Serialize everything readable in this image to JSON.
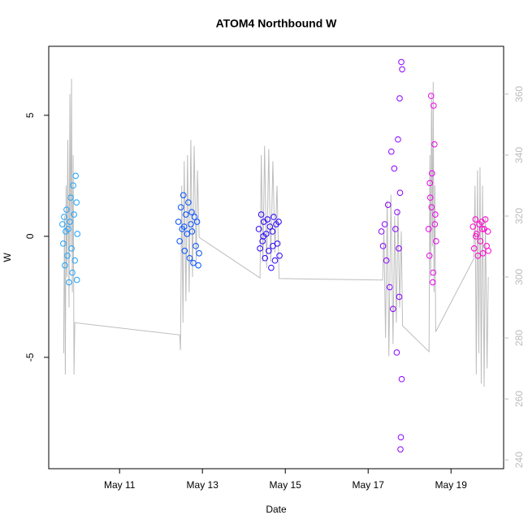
{
  "chart_data": {
    "type": "scatter",
    "title": "ATOM4 Northbound W",
    "x_label": "Date",
    "y_label": "W",
    "xlim": [
      9.29,
      20.27
    ],
    "xticks": [
      {
        "value": 11,
        "label": "May 11"
      },
      {
        "value": 13,
        "label": "May 13"
      },
      {
        "value": 15,
        "label": "May 15"
      },
      {
        "value": 17,
        "label": "May 17"
      },
      {
        "value": 19,
        "label": "May 19"
      }
    ],
    "ylim": [
      -9.6,
      7.85
    ],
    "yticks": [
      -5,
      0,
      5
    ],
    "y2lim": [
      237.1,
      375.7
    ],
    "y2ticks": [
      240,
      260,
      280,
      300,
      320,
      340,
      360
    ],
    "series": [
      {
        "color": "#bdbdbd",
        "style": "line",
        "axis": "y2",
        "x": [
          9.65,
          9.67,
          9.69,
          9.71,
          9.73,
          9.75,
          9.78,
          9.8,
          9.82,
          9.84,
          9.86,
          9.88,
          9.9,
          9.92,
          12.45,
          12.47,
          12.5,
          12.53,
          12.56,
          12.6,
          12.64,
          12.68,
          12.72,
          12.76,
          12.8,
          12.85,
          12.88,
          12.92,
          14.39,
          14.42,
          14.46,
          14.5,
          14.55,
          14.6,
          14.65,
          14.7,
          14.75,
          14.8,
          14.85,
          17.35,
          17.38,
          17.42,
          17.46,
          17.5,
          17.55,
          17.6,
          17.64,
          17.68,
          17.72,
          17.76,
          17.8,
          17.83,
          18.47,
          18.49,
          18.51,
          18.53,
          18.55,
          18.57,
          18.59,
          18.61,
          18.63,
          19.55,
          19.58,
          19.61,
          19.64,
          19.67,
          19.7,
          19.73,
          19.76,
          19.8,
          19.83,
          19.87,
          19.9
        ],
        "values": [
          275,
          320,
          268,
          330,
          300,
          345,
          290,
          360,
          310,
          365,
          295,
          340,
          268,
          285,
          281,
          276,
          330,
          285,
          338,
          292,
          340,
          295,
          345,
          300,
          343,
          305,
          335,
          313,
          299.7,
          340,
          305,
          343,
          303,
          342,
          305,
          338,
          308,
          330,
          299.5,
          299,
          315,
          280,
          325,
          274,
          327,
          278,
          320,
          285,
          322,
          290,
          315,
          284,
          275.5,
          340,
          300,
          360,
          310,
          364,
          295,
          330,
          282,
          306,
          330,
          268,
          335,
          275,
          336,
          265,
          330,
          264,
          320,
          270,
          300
        ]
      },
      {
        "color": "#1aa3ff",
        "x": [
          9.62,
          9.64,
          9.66,
          9.68,
          9.7,
          9.72,
          9.74,
          9.76,
          9.78,
          9.8,
          9.82,
          9.84,
          9.86,
          9.88,
          9.9,
          9.92,
          9.94,
          9.96,
          9.97,
          9.98
        ],
        "values": [
          0.5,
          -0.3,
          0.8,
          -1.2,
          0.2,
          1.1,
          -0.8,
          0.3,
          -1.9,
          0.6,
          1.6,
          -0.5,
          -1.5,
          2.1,
          0.9,
          -1.0,
          2.5,
          1.4,
          -1.8,
          0.1
        ]
      },
      {
        "color": "#0050ff",
        "x": [
          12.42,
          12.45,
          12.48,
          12.51,
          12.54,
          12.57,
          12.6,
          12.63,
          12.66,
          12.69,
          12.72,
          12.75,
          12.78,
          12.81,
          12.84,
          12.87,
          12.9,
          12.92,
          12.56,
          12.74
        ],
        "values": [
          0.6,
          -0.2,
          1.2,
          0.3,
          1.7,
          -0.6,
          0.9,
          0.1,
          1.4,
          -0.9,
          0.5,
          0.2,
          -1.1,
          0.8,
          -0.4,
          0.6,
          -1.2,
          -0.7,
          0.4,
          1.0
        ]
      },
      {
        "color": "#2a00ff",
        "x": [
          14.36,
          14.39,
          14.42,
          14.45,
          14.48,
          14.51,
          14.54,
          14.57,
          14.6,
          14.63,
          14.66,
          14.69,
          14.72,
          14.75,
          14.78,
          14.81,
          14.84,
          14.86,
          14.47,
          14.7
        ],
        "values": [
          0.3,
          -0.5,
          0.9,
          -0.2,
          0.6,
          -0.9,
          0.1,
          0.7,
          -0.6,
          0.4,
          -1.3,
          0.2,
          0.8,
          -1.0,
          0.5,
          -0.3,
          0.6,
          -0.8,
          0.0,
          -0.4
        ]
      },
      {
        "color": "#8a00ff",
        "x": [
          17.32,
          17.36,
          17.4,
          17.44,
          17.48,
          17.52,
          17.56,
          17.6,
          17.63,
          17.66,
          17.69,
          17.72,
          17.74,
          17.76,
          17.78,
          17.8,
          17.81,
          17.82,
          17.79,
          17.77,
          17.75,
          17.7
        ],
        "values": [
          0.2,
          -0.4,
          0.5,
          -1.0,
          1.3,
          -2.1,
          3.5,
          -3.0,
          2.8,
          0.3,
          -4.8,
          4.0,
          -0.5,
          5.7,
          -8.8,
          7.2,
          -5.9,
          6.9,
          -8.3,
          1.8,
          -2.5,
          1.0
        ]
      },
      {
        "color": "#ee00ee",
        "x": [
          18.46,
          18.48,
          18.5,
          18.52,
          18.54,
          18.56,
          18.58,
          18.6,
          18.62,
          18.64,
          18.53,
          18.57,
          18.61,
          18.49
        ],
        "values": [
          0.3,
          -0.8,
          1.6,
          5.8,
          2.6,
          -1.9,
          5.4,
          3.8,
          0.9,
          -0.2,
          1.2,
          -1.5,
          0.5,
          2.2
        ]
      },
      {
        "color": "#ff00cc",
        "x": [
          19.53,
          19.56,
          19.59,
          19.62,
          19.65,
          19.68,
          19.71,
          19.74,
          19.77,
          19.8,
          19.83,
          19.86,
          19.89,
          19.9,
          19.6,
          19.75
        ],
        "values": [
          0.4,
          -0.5,
          0.7,
          0.1,
          -0.8,
          0.5,
          -0.2,
          0.6,
          -0.7,
          0.3,
          0.7,
          -0.4,
          0.2,
          -0.6,
          0.0,
          0.3
        ]
      }
    ]
  }
}
